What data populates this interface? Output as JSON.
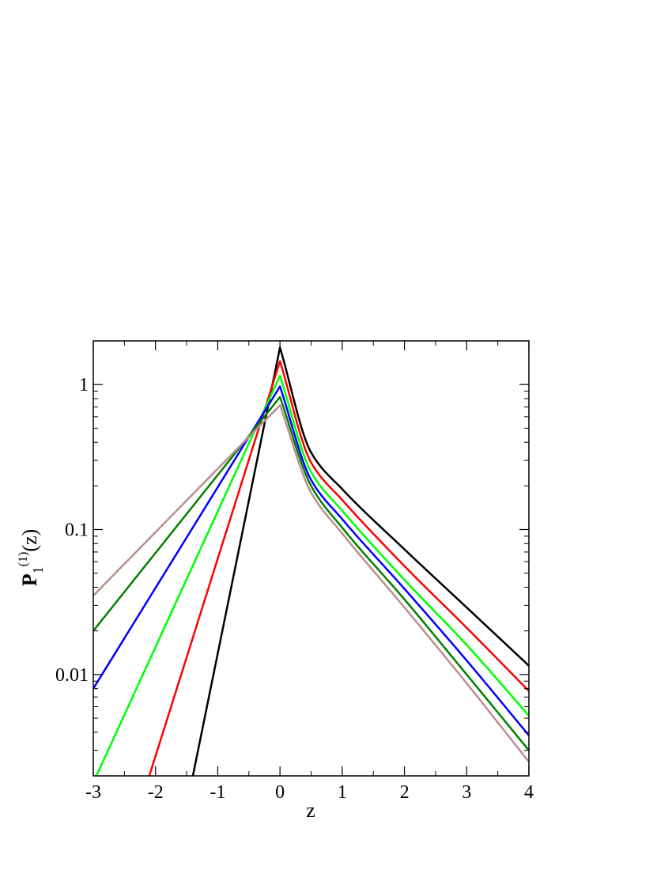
{
  "chart_data": {
    "type": "line",
    "title": "",
    "xlabel": "z",
    "ylabel": {
      "main": "P",
      "subscript": "1",
      "superscript": "(1)",
      "suffix": "(z)"
    },
    "xlim": [
      -3,
      4
    ],
    "ylim": [
      0.002,
      2
    ],
    "yscale": "log",
    "grid": false,
    "legend": "none",
    "x_ticks": [
      {
        "value": -3,
        "label": "-3"
      },
      {
        "value": -2,
        "label": "-2"
      },
      {
        "value": -1,
        "label": "-1"
      },
      {
        "value": 0,
        "label": "0"
      },
      {
        "value": 1,
        "label": "1"
      },
      {
        "value": 2,
        "label": "2"
      },
      {
        "value": 3,
        "label": "3"
      },
      {
        "value": 4,
        "label": "4"
      }
    ],
    "y_ticks": [
      {
        "value": 0.01,
        "label": "0.01"
      },
      {
        "value": 0.1,
        "label": "0.1"
      },
      {
        "value": 1,
        "label": "1"
      }
    ],
    "series": [
      {
        "color": "#000000",
        "peak": 1.8,
        "left": {
          "x": [
            -1.4,
            0
          ],
          "y": [
            0.002,
            1.8
          ]
        },
        "right": {
          "x": [
            0,
            0.5,
            1,
            2,
            3,
            4
          ],
          "y": [
            1.8,
            0.34,
            0.19,
            0.073,
            0.029,
            0.0115
          ]
        }
      },
      {
        "color": "#ff0000",
        "peak": 1.45,
        "left": {
          "x": [
            -2.1,
            0
          ],
          "y": [
            0.002,
            1.45
          ]
        },
        "right": {
          "x": [
            0,
            0.5,
            1,
            2,
            3,
            4
          ],
          "y": [
            1.45,
            0.29,
            0.16,
            0.056,
            0.021,
            0.0077
          ]
        }
      },
      {
        "color": "#00ff00",
        "peak": 1.15,
        "left": {
          "x": [
            -2.95,
            0
          ],
          "y": [
            0.002,
            1.15
          ]
        },
        "right": {
          "x": [
            0,
            0.5,
            1,
            2,
            3,
            4
          ],
          "y": [
            1.15,
            0.25,
            0.135,
            0.045,
            0.016,
            0.0052
          ]
        }
      },
      {
        "color": "#0000ff",
        "peak": 0.97,
        "left": {
          "x": [
            -3,
            0
          ],
          "y": [
            0.008,
            0.97
          ]
        },
        "right": {
          "x": [
            0,
            0.5,
            1,
            2,
            3,
            4
          ],
          "y": [
            0.97,
            0.22,
            0.118,
            0.039,
            0.0125,
            0.0038
          ]
        }
      },
      {
        "color": "#008000",
        "peak": 0.82,
        "left": {
          "x": [
            -3,
            0
          ],
          "y": [
            0.02,
            0.82
          ]
        },
        "right": {
          "x": [
            0,
            0.5,
            1,
            2,
            3,
            4
          ],
          "y": [
            0.82,
            0.2,
            0.103,
            0.033,
            0.01,
            0.003
          ]
        }
      },
      {
        "color": "#bc8f8f",
        "peak": 0.72,
        "left": {
          "x": [
            -3,
            0
          ],
          "y": [
            0.035,
            0.72
          ]
        },
        "right": {
          "x": [
            0,
            0.5,
            1,
            2,
            3,
            4
          ],
          "y": [
            0.72,
            0.18,
            0.094,
            0.029,
            0.0087,
            0.0025
          ]
        }
      }
    ]
  }
}
